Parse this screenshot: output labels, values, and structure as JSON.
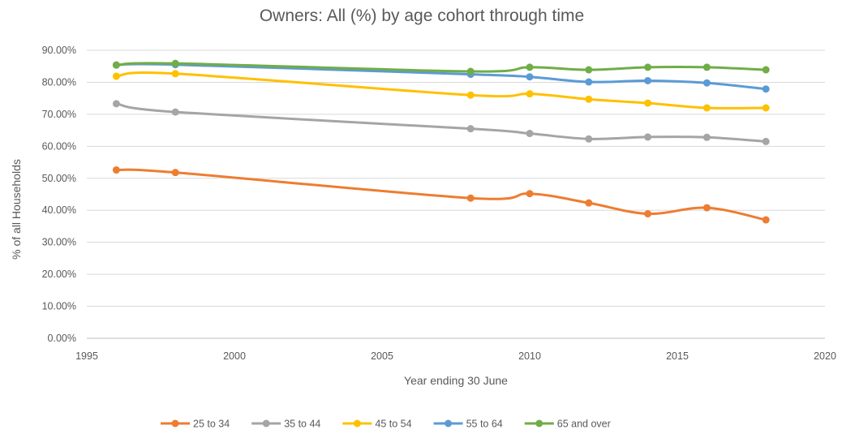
{
  "chart_data": {
    "type": "line",
    "title": "Owners: All (%) by age cohort through time",
    "xlabel": "Year ending 30 June",
    "ylabel": "% of all Households",
    "xlim": [
      1995,
      2020
    ],
    "xticks": [
      "1995",
      "2000",
      "2005",
      "2010",
      "2015",
      "2020"
    ],
    "xtick_values": [
      1995,
      2000,
      2005,
      2010,
      2015,
      2020
    ],
    "ylim": [
      0,
      90
    ],
    "yticks": [
      "0.00%",
      "10.00%",
      "20.00%",
      "30.00%",
      "40.00%",
      "50.00%",
      "60.00%",
      "70.00%",
      "80.00%",
      "90.00%"
    ],
    "ytick_values": [
      0,
      10,
      20,
      30,
      40,
      50,
      60,
      70,
      80,
      90
    ],
    "grid": "horizontal",
    "legend_position": "bottom",
    "x": [
      1996,
      1998,
      2008,
      2010,
      2012,
      2014,
      2016,
      2018
    ],
    "series": [
      {
        "name": "25 to 34",
        "color": "#ed7d31",
        "values": [
          52.6,
          51.8,
          43.8,
          45.2,
          42.3,
          38.9,
          40.8,
          37.0
        ]
      },
      {
        "name": "35 to 44",
        "color": "#a5a5a5",
        "values": [
          73.3,
          70.7,
          65.5,
          64.0,
          62.3,
          62.9,
          62.8,
          61.5
        ]
      },
      {
        "name": "45 to 54",
        "color": "#ffc000",
        "values": [
          81.9,
          82.7,
          76.0,
          76.4,
          74.7,
          73.5,
          72.0,
          72.0
        ]
      },
      {
        "name": "55 to 64",
        "color": "#5b9bd5",
        "values": [
          85.4,
          85.5,
          82.5,
          81.7,
          80.1,
          80.5,
          79.8,
          77.9
        ]
      },
      {
        "name": "65 and over",
        "color": "#70ad47",
        "values": [
          85.4,
          85.9,
          83.4,
          84.7,
          83.9,
          84.7,
          84.7,
          83.9
        ]
      }
    ]
  }
}
